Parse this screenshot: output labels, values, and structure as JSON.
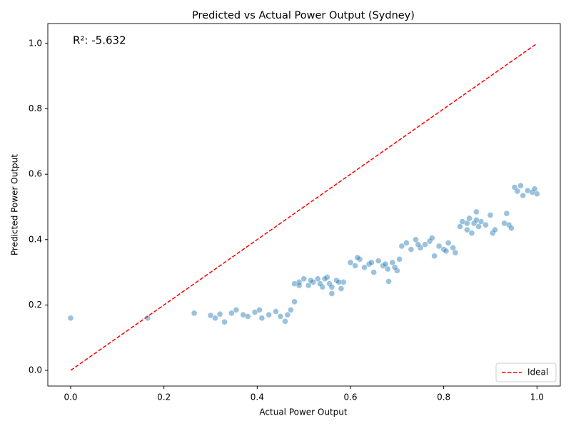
{
  "chart_data": {
    "type": "scatter",
    "title": "Predicted vs Actual Power Output (Sydney)",
    "x_label": "Actual Power Output",
    "y_label": "Predicted Power Output",
    "annotation": "R²: -5.632",
    "xlim": [
      -0.049,
      1.05
    ],
    "ylim": [
      -0.048,
      1.061
    ],
    "xticks": [
      {
        "value": 0,
        "label": "0.0"
      },
      0.2,
      0.4,
      0.6,
      0.8,
      {
        "value": 1,
        "label": "1.0"
      }
    ],
    "yticks": [
      {
        "value": 0,
        "label": "0.0"
      },
      0.2,
      0.4,
      0.6,
      0.8,
      {
        "value": 1,
        "label": "1.0"
      }
    ],
    "legend": "lower right",
    "series": [
      {
        "color": "#1f77b4",
        "x": [
          0,
          0.165,
          0.265,
          0.3,
          0.31,
          0.32,
          0.33,
          0.345,
          0.355,
          0.37,
          0.38,
          0.395,
          0.405,
          0.41,
          0.425,
          0.44,
          0.45,
          0.46,
          0.465,
          0.472,
          0.48,
          0.48,
          0.49,
          0.5,
          0.51,
          0.52,
          0.53,
          0.54,
          0.55,
          0.555,
          0.56,
          0.57,
          0.58,
          0.585,
          0.49,
          0.515,
          0.535,
          0.545,
          0.56,
          0.575,
          0.6,
          0.61,
          0.62,
          0.63,
          0.64,
          0.65,
          0.66,
          0.67,
          0.68,
          0.69,
          0.7,
          0.705,
          0.615,
          0.645,
          0.675,
          0.682,
          0.695,
          0.71,
          0.72,
          0.73,
          0.74,
          0.75,
          0.76,
          0.77,
          0.78,
          0.79,
          0.8,
          0.81,
          0.82,
          0.825,
          0.745,
          0.775,
          0.805,
          0.835,
          0.84,
          0.85,
          0.855,
          0.86,
          0.865,
          0.87,
          0.875,
          0.88,
          0.89,
          0.9,
          0.905,
          0.91,
          0.93,
          0.935,
          0.94,
          0.945,
          0.85,
          0.87,
          0.952,
          0.958,
          0.965,
          0.97,
          0.98,
          0.99,
          0.995,
          1.0
        ],
        "values": [
          0.16,
          0.16,
          0.175,
          0.168,
          0.16,
          0.172,
          0.148,
          0.175,
          0.185,
          0.17,
          0.165,
          0.178,
          0.185,
          0.16,
          0.17,
          0.18,
          0.165,
          0.15,
          0.17,
          0.185,
          0.21,
          0.265,
          0.27,
          0.28,
          0.26,
          0.27,
          0.28,
          0.255,
          0.285,
          0.265,
          0.235,
          0.275,
          0.25,
          0.27,
          0.26,
          0.275,
          0.265,
          0.28,
          0.255,
          0.27,
          0.33,
          0.32,
          0.34,
          0.315,
          0.325,
          0.3,
          0.335,
          0.32,
          0.31,
          0.33,
          0.305,
          0.34,
          0.345,
          0.33,
          0.325,
          0.272,
          0.315,
          0.38,
          0.39,
          0.37,
          0.4,
          0.375,
          0.385,
          0.395,
          0.35,
          0.38,
          0.37,
          0.39,
          0.375,
          0.36,
          0.385,
          0.405,
          0.365,
          0.44,
          0.455,
          0.43,
          0.465,
          0.42,
          0.45,
          0.485,
          0.44,
          0.455,
          0.445,
          0.475,
          0.42,
          0.43,
          0.45,
          0.48,
          0.445,
          0.435,
          0.45,
          0.46,
          0.56,
          0.548,
          0.565,
          0.535,
          0.55,
          0.545,
          0.555,
          0.54
        ]
      }
    ],
    "lines": [
      {
        "name": "Ideal",
        "color": "#ff0000",
        "style": "dashed",
        "x": [
          0,
          1
        ],
        "values": [
          0,
          1
        ]
      }
    ]
  }
}
